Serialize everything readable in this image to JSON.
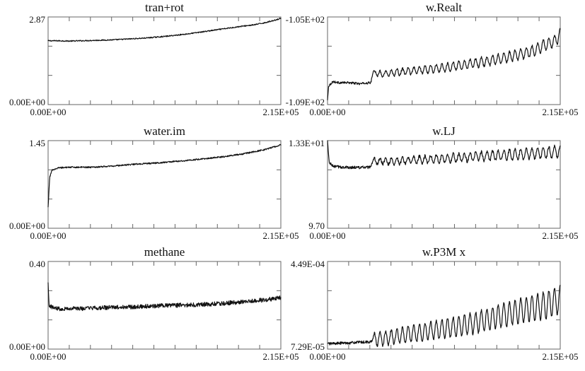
{
  "chart_data": [
    {
      "type": "line",
      "title": "tran+rot",
      "y_top_label": "2.87",
      "y_bottom_label": "0.00E+00",
      "x_left_label": "0.00E+00",
      "x_right_label": "2.15E+05",
      "xlim": [
        0,
        215000
      ],
      "ylim": [
        0,
        2.87
      ],
      "series": [
        {
          "x": [
            0,
            10000,
            20000,
            30000,
            40000,
            50000,
            60000,
            70000,
            80000,
            90000,
            100000,
            110000,
            120000,
            130000,
            140000,
            150000,
            160000,
            170000,
            180000,
            190000,
            200000,
            210000,
            215000
          ],
          "y": [
            2.09,
            2.09,
            2.08,
            2.09,
            2.1,
            2.11,
            2.12,
            2.14,
            2.16,
            2.18,
            2.21,
            2.24,
            2.28,
            2.32,
            2.37,
            2.42,
            2.47,
            2.52,
            2.57,
            2.61,
            2.68,
            2.77,
            2.83
          ],
          "values": [
            2.09,
            2.09,
            2.08,
            2.09,
            2.1,
            2.11,
            2.12,
            2.14,
            2.16,
            2.18,
            2.21,
            2.24,
            2.28,
            2.32,
            2.37,
            2.42,
            2.47,
            2.52,
            2.57,
            2.61,
            2.68,
            2.77,
            2.83
          ]
        }
      ]
    },
    {
      "type": "line",
      "title": "w.Realt",
      "y_top_label": "-1.05E+02",
      "y_bottom_label": "-1.09E+02",
      "x_left_label": "0.00E+00",
      "x_right_label": "2.15E+05",
      "xlim": [
        0,
        215000
      ],
      "ylim": [
        -109,
        -105
      ],
      "series": [
        {
          "x": [
            0,
            1000,
            5000,
            10000,
            20000,
            30000,
            40000,
            42000,
            50000,
            70000,
            90000,
            110000,
            130000,
            150000,
            170000,
            190000,
            200000,
            210000,
            215000
          ],
          "y": [
            -108.8,
            -108.15,
            -107.95,
            -108.0,
            -108.0,
            -108.05,
            -108.0,
            -107.55,
            -107.6,
            -107.5,
            -107.4,
            -107.3,
            -107.15,
            -107.0,
            -106.8,
            -106.55,
            -106.3,
            -106.1,
            -105.8
          ],
          "values": [
            -108.8,
            -108.15,
            -107.95,
            -108.0,
            -108.0,
            -108.05,
            -108.0,
            -107.55,
            -107.6,
            -107.5,
            -107.4,
            -107.3,
            -107.15,
            -107.0,
            -106.8,
            -106.55,
            -106.3,
            -106.1,
            -105.8
          ]
        }
      ]
    },
    {
      "type": "line",
      "title": "water.im",
      "y_top_label": "1.45",
      "y_bottom_label": "0.00E+00",
      "x_left_label": "0.00E+00",
      "x_right_label": "2.15E+05",
      "xlim": [
        0,
        215000
      ],
      "ylim": [
        0,
        1.45
      ],
      "series": [
        {
          "x": [
            0,
            1500,
            4000,
            10000,
            20000,
            40000,
            60000,
            80000,
            100000,
            120000,
            140000,
            160000,
            180000,
            200000,
            215000
          ],
          "y": [
            0.35,
            0.85,
            0.97,
            1.0,
            1.01,
            1.01,
            1.03,
            1.06,
            1.08,
            1.11,
            1.14,
            1.18,
            1.23,
            1.3,
            1.38
          ],
          "values": [
            0.35,
            0.85,
            0.97,
            1.0,
            1.01,
            1.01,
            1.03,
            1.06,
            1.08,
            1.11,
            1.14,
            1.18,
            1.23,
            1.3,
            1.38
          ]
        }
      ]
    },
    {
      "type": "line",
      "title": "w.LJ",
      "y_top_label": "1.33E+01",
      "y_bottom_label": "9.70",
      "x_left_label": "0.00E+00",
      "x_right_label": "2.15E+05",
      "xlim": [
        0,
        215000
      ],
      "ylim": [
        9.7,
        13.3
      ],
      "series": [
        {
          "x": [
            0,
            1500,
            5000,
            15000,
            30000,
            40000,
            42000,
            60000,
            80000,
            100000,
            120000,
            140000,
            160000,
            180000,
            200000,
            215000
          ],
          "y": [
            13.3,
            12.4,
            12.25,
            12.2,
            12.2,
            12.2,
            12.45,
            12.45,
            12.5,
            12.55,
            12.6,
            12.65,
            12.7,
            12.75,
            12.8,
            12.85
          ],
          "values": [
            13.3,
            12.4,
            12.25,
            12.2,
            12.2,
            12.2,
            12.45,
            12.45,
            12.5,
            12.55,
            12.6,
            12.65,
            12.7,
            12.75,
            12.8,
            12.85
          ]
        }
      ]
    },
    {
      "type": "line",
      "title": "methane",
      "y_top_label": "0.40",
      "y_bottom_label": "0.00E+00",
      "x_left_label": "0.00E+00",
      "x_right_label": "2.15E+05",
      "xlim": [
        0,
        215000
      ],
      "ylim": [
        0,
        0.4
      ],
      "series": [
        {
          "x": [
            0,
            1000,
            4000,
            10000,
            30000,
            60000,
            90000,
            120000,
            150000,
            180000,
            200000,
            215000
          ],
          "y": [
            0.3,
            0.2,
            0.19,
            0.185,
            0.185,
            0.19,
            0.195,
            0.2,
            0.205,
            0.215,
            0.225,
            0.235
          ],
          "values": [
            0.3,
            0.2,
            0.19,
            0.185,
            0.185,
            0.19,
            0.195,
            0.2,
            0.205,
            0.215,
            0.225,
            0.235
          ]
        }
      ]
    },
    {
      "type": "line",
      "title": "w.P3M  x",
      "y_top_label": "4.49E-04",
      "y_bottom_label": "7.29E-05",
      "x_left_label": "0.00E+00",
      "x_right_label": "2.15E+05",
      "xlim": [
        0,
        215000
      ],
      "ylim": [
        7.29e-05,
        0.000449
      ],
      "series": [
        {
          "x": [
            0,
            10000,
            20000,
            30000,
            40000,
            42000,
            60000,
            80000,
            100000,
            120000,
            140000,
            160000,
            180000,
            200000,
            215000
          ],
          "y": [
            9.6e-05,
            9.8e-05,
            0.0001,
            0.000102,
            0.000104,
            0.000112,
            0.000125,
            0.00014,
            0.000155,
            0.00017,
            0.00019,
            0.000215,
            0.00024,
            0.00026,
            0.000285
          ],
          "values": [
            9.6e-05,
            9.8e-05,
            0.0001,
            0.000102,
            0.000104,
            0.000112,
            0.000125,
            0.00014,
            0.000155,
            0.00017,
            0.00019,
            0.000215,
            0.00024,
            0.00026,
            0.000285
          ]
        }
      ]
    }
  ]
}
